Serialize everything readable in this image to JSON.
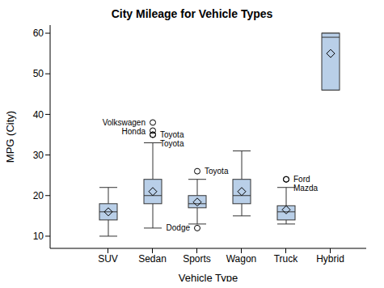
{
  "chart_data": {
    "type": "box",
    "title": "City Mileage for Vehicle Types",
    "x_label": "Vehicle Type",
    "y_label": "MPG (City)",
    "categories": [
      "SUV",
      "Sedan",
      "Sports",
      "Wagon",
      "Truck",
      "Hybrid"
    ],
    "ylim": [
      7,
      62
    ],
    "yticks": [
      10,
      20,
      30,
      40,
      50,
      60
    ],
    "color": "#b9cfe8",
    "boxes": [
      {
        "min": 10,
        "q1": 14,
        "median": 16,
        "mean": 16,
        "q3": 18,
        "max": 22,
        "outliers": []
      },
      {
        "min": 12,
        "q1": 18,
        "median": 20,
        "mean": 21,
        "q3": 24,
        "max": 33,
        "outliers": [
          {
            "label": "Volkswagen",
            "value": 38
          },
          {
            "label": "Honda",
            "value": 36
          },
          {
            "label": "Toyota",
            "value": 35
          },
          {
            "label": "Toyota",
            "value": 35
          }
        ]
      },
      {
        "min": 13,
        "q1": 17,
        "median": 18,
        "mean": 18.4,
        "q3": 20,
        "max": 24,
        "outliers": [
          {
            "label": "Toyota",
            "value": 26
          },
          {
            "label": "Dodge",
            "value": 12
          }
        ]
      },
      {
        "min": 15,
        "q1": 18,
        "median": 20,
        "mean": 21,
        "q3": 24,
        "max": 31,
        "outliers": []
      },
      {
        "min": 13,
        "q1": 14,
        "median": 16,
        "mean": 16.5,
        "q3": 17.5,
        "max": 22,
        "outliers": [
          {
            "label": "Ford",
            "value": 24
          },
          {
            "label": "Mazda",
            "value": 24
          }
        ]
      },
      {
        "min": 46,
        "q1": 46,
        "median": 59,
        "mean": 55,
        "q3": 60,
        "max": 60,
        "outliers": []
      }
    ]
  }
}
